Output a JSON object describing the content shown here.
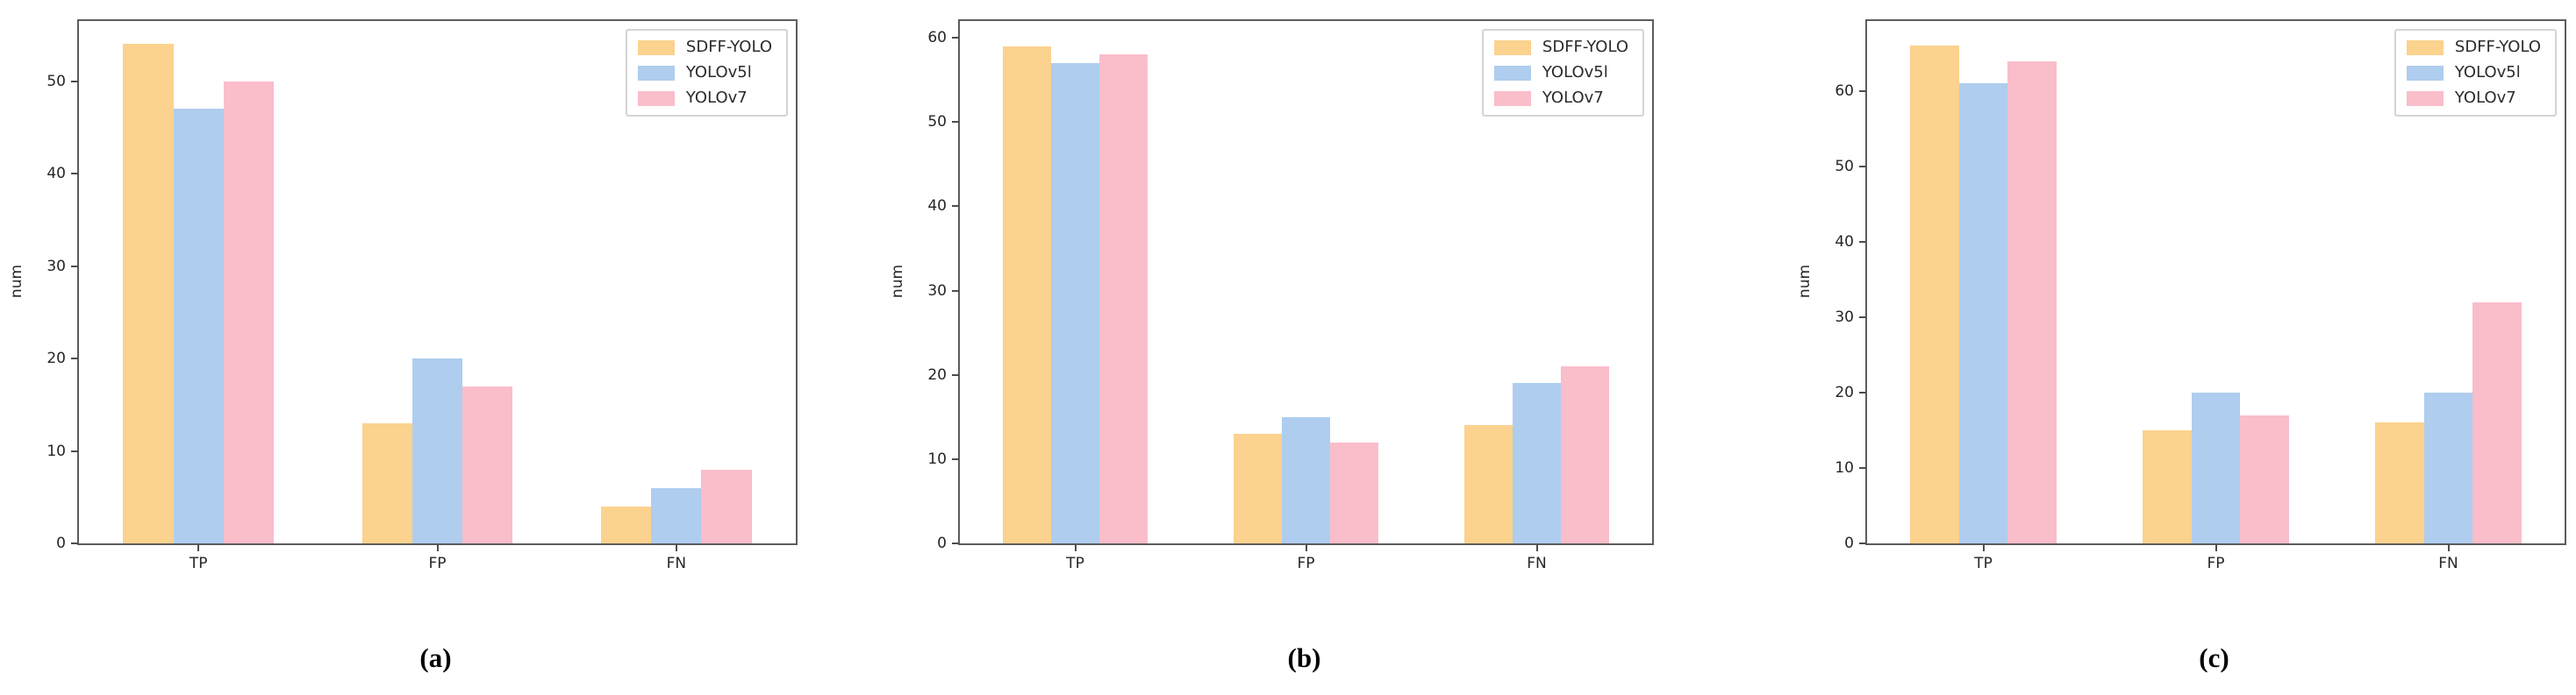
{
  "figure": {
    "description": "Three grouped bar charts comparing detection counts of three models",
    "series_colors": [
      "#FBD28E",
      "#AFCDEE",
      "#FABDCA"
    ],
    "series_names": [
      "SDFF-YOLO",
      "YOLOv5l",
      "YOLOv7"
    ]
  },
  "chart_data": [
    {
      "type": "bar",
      "caption": "(a)",
      "title": "",
      "xlabel": "",
      "ylabel": "num",
      "categories": [
        "TP",
        "FP",
        "FN"
      ],
      "series": [
        {
          "name": "SDFF-YOLO",
          "values": [
            54,
            13,
            4
          ]
        },
        {
          "name": "YOLOv5l",
          "values": [
            47,
            20,
            6
          ]
        },
        {
          "name": "YOLOv7",
          "values": [
            50,
            17,
            8
          ]
        }
      ],
      "yticks": [
        0,
        10,
        20,
        30,
        40,
        50
      ],
      "ylim": [
        0,
        56.5
      ],
      "grid": false,
      "legend_position": "upper right"
    },
    {
      "type": "bar",
      "caption": "(b)",
      "title": "",
      "xlabel": "",
      "ylabel": "num",
      "categories": [
        "TP",
        "FP",
        "FN"
      ],
      "series": [
        {
          "name": "SDFF-YOLO",
          "values": [
            59,
            13,
            14
          ]
        },
        {
          "name": "YOLOv5l",
          "values": [
            57,
            15,
            19
          ]
        },
        {
          "name": "YOLOv7",
          "values": [
            58,
            12,
            21
          ]
        }
      ],
      "yticks": [
        0,
        10,
        20,
        30,
        40,
        50,
        60
      ],
      "ylim": [
        0,
        62
      ],
      "grid": false,
      "legend_position": "upper right"
    },
    {
      "type": "bar",
      "caption": "(c)",
      "title": "",
      "xlabel": "",
      "ylabel": "num",
      "categories": [
        "TP",
        "FP",
        "FN"
      ],
      "series": [
        {
          "name": "SDFF-YOLO",
          "values": [
            66,
            15,
            16
          ]
        },
        {
          "name": "YOLOv5l",
          "values": [
            61,
            20,
            20
          ]
        },
        {
          "name": "YOLOv7",
          "values": [
            64,
            17,
            32
          ]
        }
      ],
      "yticks": [
        0,
        10,
        20,
        30,
        40,
        50,
        60
      ],
      "ylim": [
        0,
        69.3
      ],
      "grid": false,
      "legend_position": "upper right"
    }
  ]
}
